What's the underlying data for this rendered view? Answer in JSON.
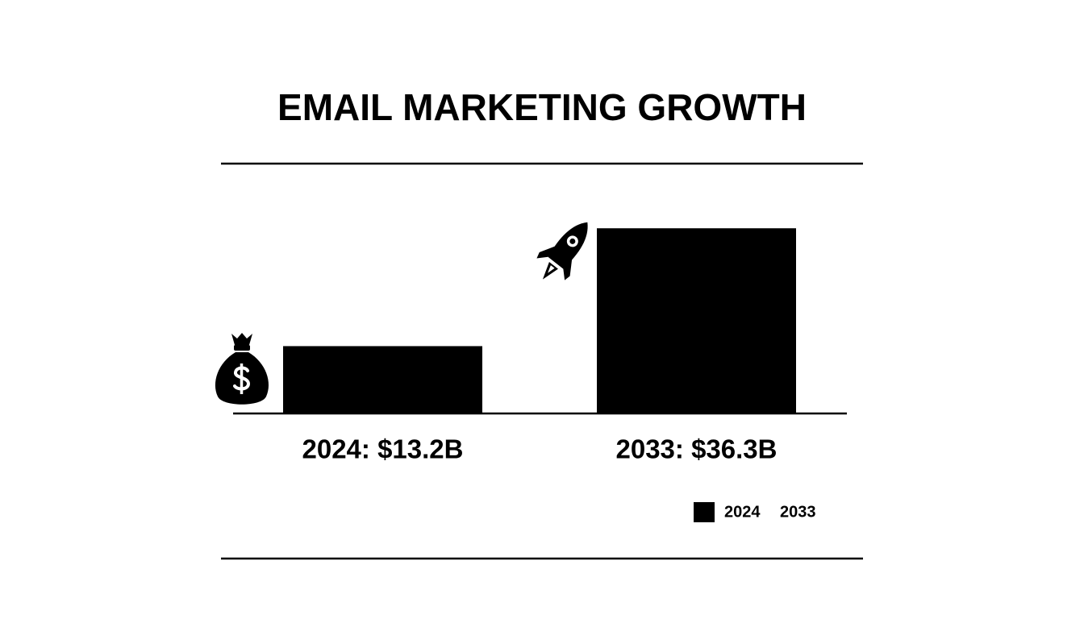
{
  "chart_data": {
    "type": "bar",
    "title": "EMAIL MARKETING GROWTH",
    "categories": [
      "2024",
      "2033"
    ],
    "values": [
      13.2,
      36.3
    ],
    "value_labels": [
      "2024: $13.2B",
      "2033: $36.3B"
    ],
    "color": "#000000"
  }
}
